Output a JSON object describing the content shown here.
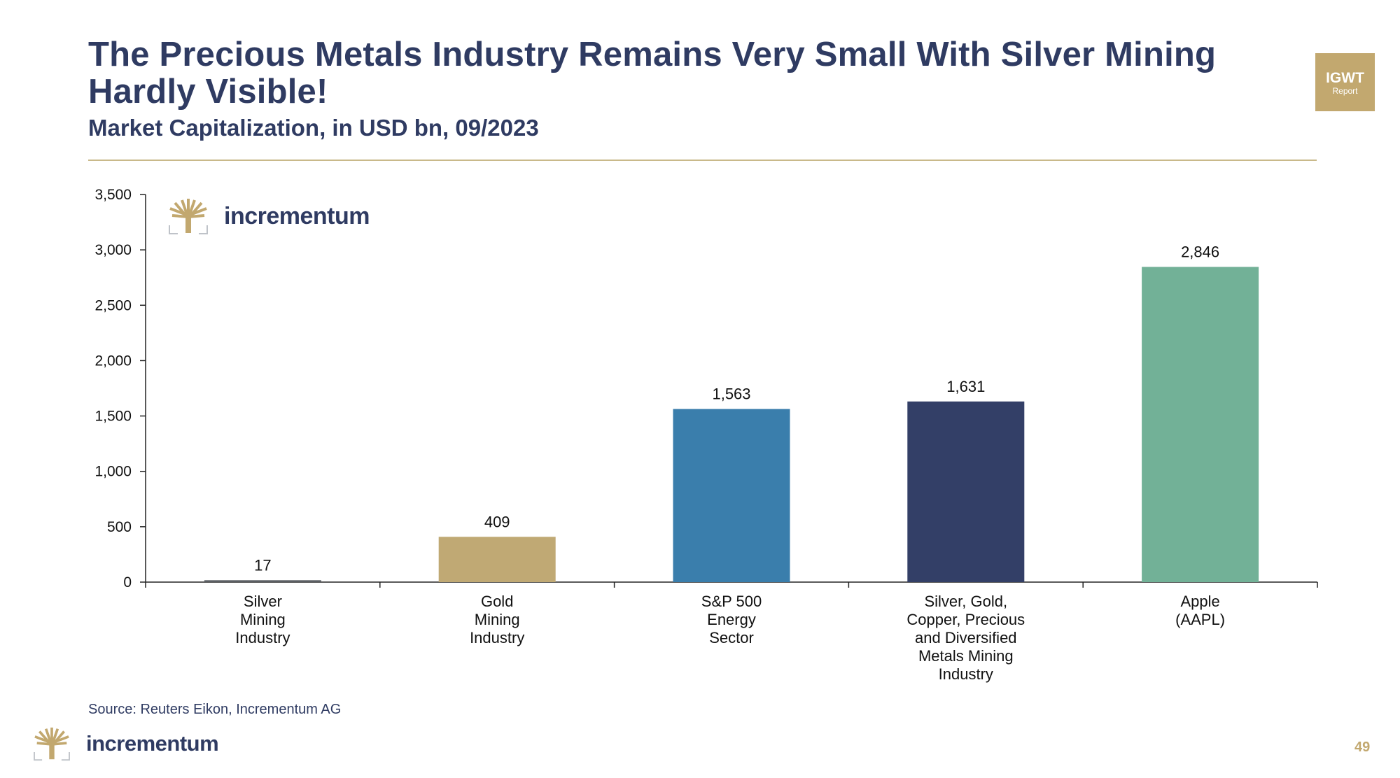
{
  "header": {
    "title": "The Precious Metals Industry Remains Very Small With Silver Mining Hardly Visible!",
    "subtitle": "Market Capitalization, in USD bn, 09/2023"
  },
  "badge": {
    "line1": "IGWT",
    "line2": "Report"
  },
  "logo": {
    "wordmark": "incrementum",
    "icon": "tree-icon",
    "color": "#c2a86f"
  },
  "footer": {
    "source": "Source: Reuters Eikon, Incrementum AG",
    "page_number": "49"
  },
  "chart_data": {
    "type": "bar",
    "title": "Market Capitalization, in USD bn, 09/2023",
    "xlabel": "",
    "ylabel": "",
    "ylim": [
      0,
      3500
    ],
    "yticks": [
      0,
      500,
      1000,
      1500,
      2000,
      2500,
      3000,
      3500
    ],
    "ytick_labels": [
      "0",
      "500",
      "1,000",
      "1,500",
      "2,000",
      "2,500",
      "3,000",
      "3,500"
    ],
    "categories": [
      [
        "Silver",
        "Mining",
        "Industry"
      ],
      [
        "Gold",
        "Mining",
        "Industry"
      ],
      [
        "S&P 500",
        "Energy",
        "Sector"
      ],
      [
        "Silver, Gold,",
        "Copper, Precious",
        "and Diversified",
        "Metals Mining",
        "Industry"
      ],
      [
        "Apple",
        "(AAPL)"
      ]
    ],
    "values": [
      17,
      409,
      1563,
      1631,
      2846
    ],
    "value_labels": [
      "17",
      "409",
      "1,563",
      "1,631",
      "2,846"
    ],
    "colors": [
      "#5b5f63",
      "#c0a974",
      "#3a7eac",
      "#333f67",
      "#72b197"
    ],
    "grid": false,
    "legend": "none"
  }
}
